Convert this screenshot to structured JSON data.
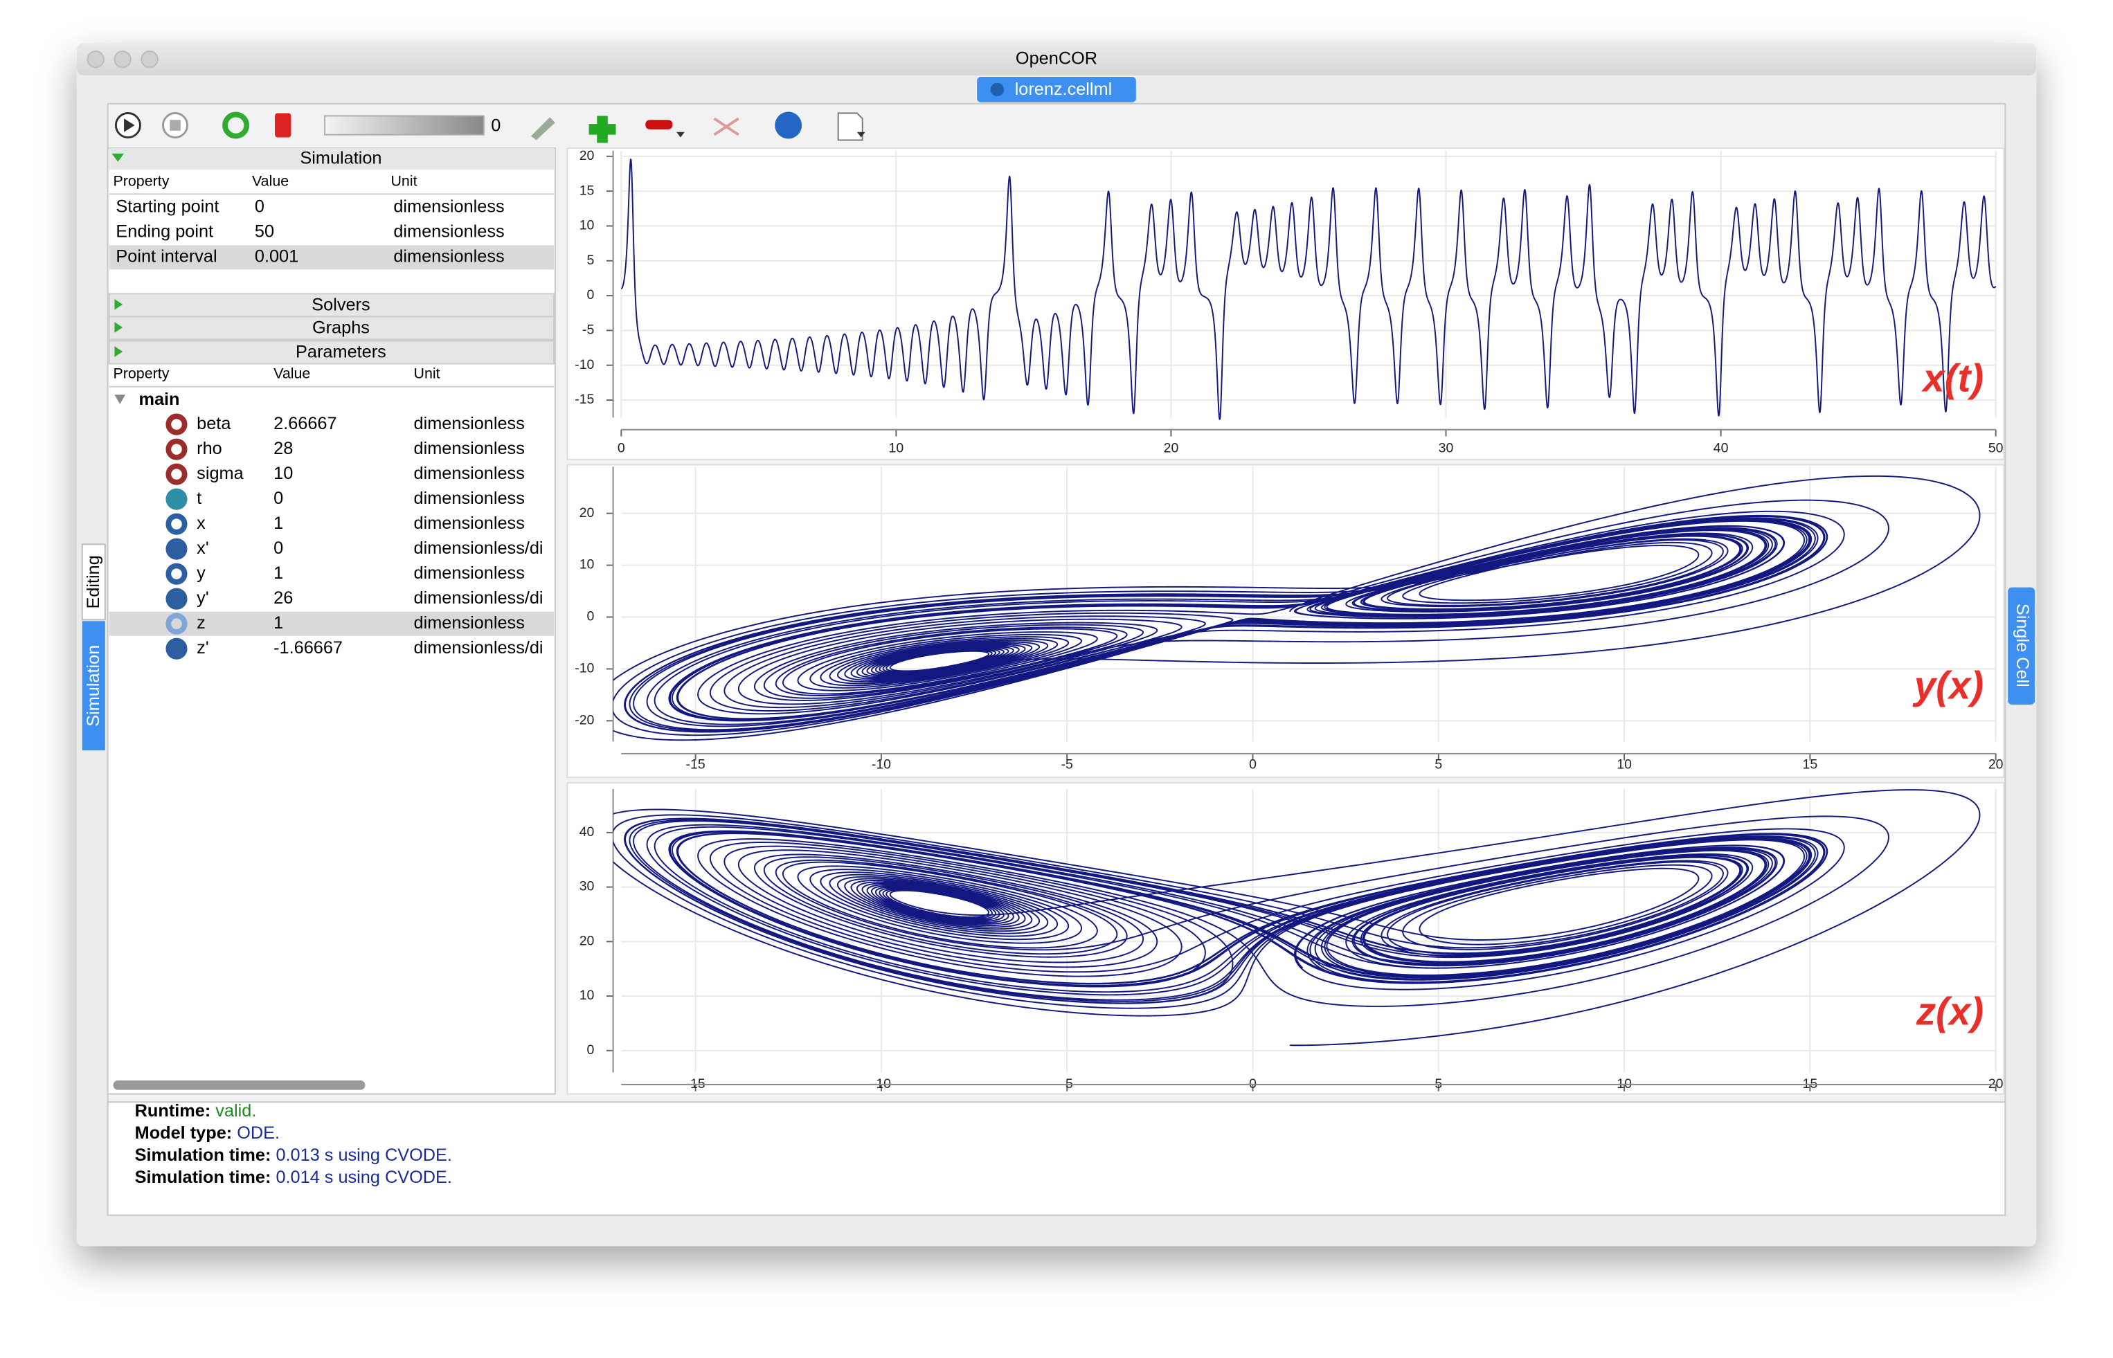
{
  "window": {
    "title": "OpenCOR",
    "tab": "lorenz.cellml"
  },
  "toolbar": {
    "counter": 0
  },
  "simulation": {
    "heading": "Simulation",
    "columns": [
      "Property",
      "Value",
      "Unit"
    ],
    "rows": [
      [
        "Starting point",
        0,
        "dimensionless"
      ],
      [
        "Ending point",
        50,
        "dimensionless"
      ],
      [
        "Point interval",
        0.001,
        "dimensionless"
      ]
    ]
  },
  "sections": [
    "Solvers",
    "Graphs"
  ],
  "parameters": {
    "heading": "Parameters",
    "columns": [
      "Property",
      "Value",
      "Unit"
    ],
    "group": "main",
    "rows": [
      [
        "beta",
        2.66667,
        "dimensionless"
      ],
      [
        "rho",
        28,
        "dimensionless"
      ],
      [
        "sigma",
        10,
        "dimensionless"
      ],
      [
        "t",
        0,
        "dimensionless"
      ],
      [
        "x",
        1,
        "dimensionless"
      ],
      [
        "x'",
        0,
        "dimensionless/di"
      ],
      [
        "y",
        1,
        "dimensionless"
      ],
      [
        "y'",
        26,
        "dimensionless/di"
      ],
      [
        "z",
        1,
        "dimensionless"
      ],
      [
        "z'",
        -1.66667,
        "dimensionless/di"
      ]
    ]
  },
  "side_tabs": {
    "left": [
      "Editing",
      "Simulation"
    ],
    "right": "Single Cell"
  },
  "plots": [
    {
      "label": "x(t)",
      "xlim": [
        0,
        50
      ],
      "xticks": [
        0,
        10,
        20,
        30,
        40,
        50
      ],
      "ylim": [
        -17.5,
        20.8
      ],
      "yticks": [
        -15,
        -10,
        -5,
        0,
        5,
        10,
        15,
        20
      ]
    },
    {
      "label": "y(x)",
      "xlim": [
        -17,
        20
      ],
      "xticks": [
        -15,
        -10,
        -5,
        0,
        5,
        10,
        15,
        20
      ],
      "ylim": [
        -24,
        29
      ],
      "yticks": [
        -20,
        -10,
        0,
        10,
        20
      ]
    },
    {
      "label": "z(x)",
      "xlim": [
        -17,
        20
      ],
      "xticks": [
        -15,
        -10,
        -5,
        0,
        5,
        10,
        15,
        20
      ],
      "ylim": [
        -4,
        48
      ],
      "yticks": [
        0,
        10,
        20,
        30,
        40
      ]
    }
  ],
  "output": [
    [
      "Runtime:",
      "valid."
    ],
    [
      "Model type:",
      "ODE."
    ],
    [
      "Simulation time:",
      "0.013 s using CVODE."
    ],
    [
      "Simulation time:",
      "0.014 s using CVODE."
    ]
  ]
}
